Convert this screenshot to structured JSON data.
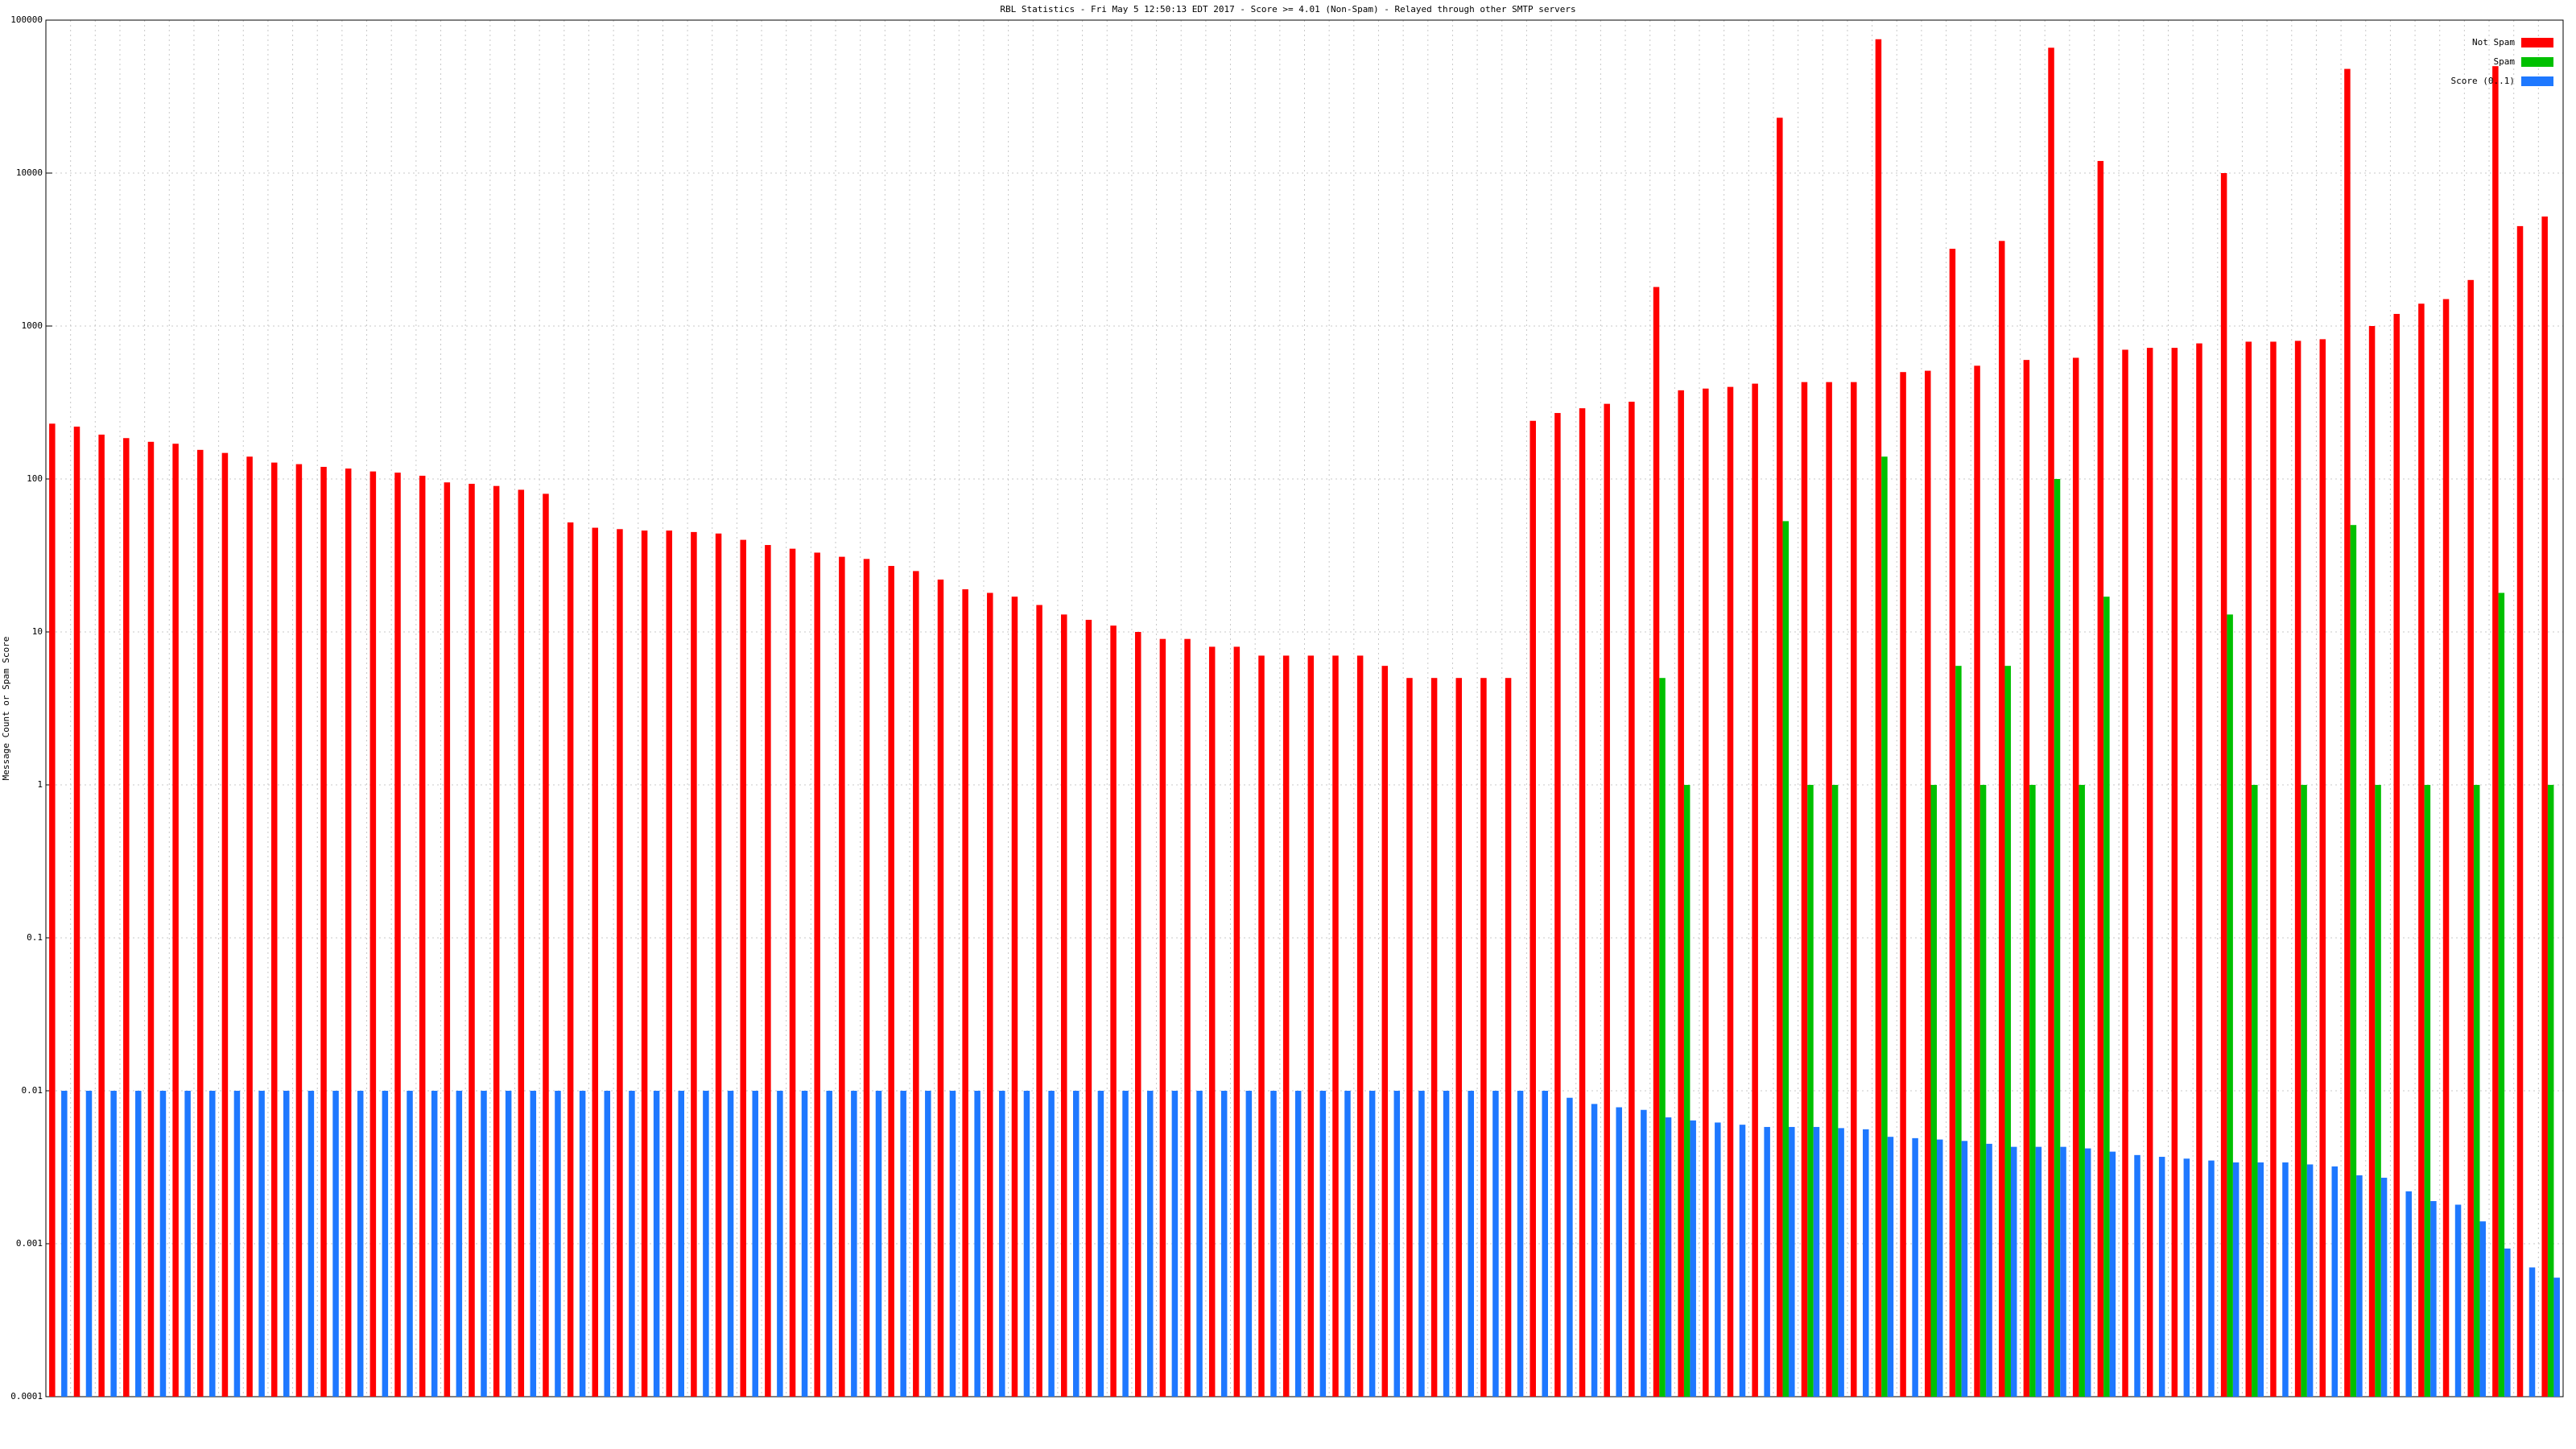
{
  "chart_data": {
    "type": "bar",
    "title": "RBL Statistics - Fri May  5 12:50:13 EDT 2017 - Score >= 4.01 (Non-Spam) - Relayed through other SMTP servers",
    "y_label": "Message Count or Spam Score",
    "log_scale": true,
    "grid": true,
    "legend": "top-right",
    "categories": [
      null,
      null,
      null,
      null,
      null,
      null,
      null,
      null,
      null,
      null,
      null,
      null,
      null,
      null,
      null,
      null,
      null,
      null,
      null,
      null,
      null,
      null,
      null,
      null,
      null,
      null,
      null,
      null,
      null,
      null,
      null,
      null,
      null,
      null,
      null,
      null,
      null,
      null,
      null,
      null,
      null,
      null,
      null,
      null,
      null,
      null,
      null,
      null,
      null,
      null,
      null,
      null,
      null,
      null,
      null,
      null,
      null,
      null,
      null,
      null,
      null,
      null,
      null,
      null,
      null,
      null,
      null,
      null,
      null,
      null,
      null,
      null,
      null,
      null,
      null,
      null,
      null,
      null,
      null,
      null,
      null,
      null,
      null,
      null,
      null,
      null,
      null,
      null,
      null,
      null,
      null,
      null,
      null,
      null,
      null,
      null,
      null,
      null,
      null,
      null,
      null,
      null
    ],
    "series": [
      {
        "name": "Not Spam",
        "color": "#ff0000",
        "values": [
          230,
          220,
          195,
          185,
          175,
          170,
          155,
          148,
          140,
          128,
          125,
          120,
          117,
          112,
          110,
          105,
          95,
          93,
          90,
          85,
          80,
          52,
          48,
          47,
          46,
          46,
          45,
          44,
          40,
          37,
          35,
          33,
          31,
          30,
          27,
          25,
          22,
          19,
          18,
          17,
          15,
          13,
          12,
          11,
          10,
          9,
          9,
          8,
          8,
          7,
          7,
          7,
          7,
          7,
          6,
          5,
          5,
          5,
          5,
          5,
          240,
          270,
          290,
          310,
          320,
          1800,
          380,
          390,
          400,
          420,
          23000,
          430,
          430,
          430,
          75000,
          500,
          510,
          3200,
          550,
          3600,
          600,
          66000,
          620,
          12000,
          700,
          720,
          720,
          770,
          10000,
          790,
          790,
          800,
          820,
          48000,
          1000,
          1200,
          1400,
          1500,
          2000,
          50000,
          4500,
          5200
        ]
      },
      {
        "name": "Spam",
        "color": "#00c000",
        "values": [
          null,
          null,
          null,
          null,
          null,
          null,
          null,
          null,
          null,
          null,
          null,
          null,
          null,
          null,
          null,
          null,
          null,
          null,
          null,
          null,
          null,
          null,
          null,
          null,
          null,
          null,
          null,
          null,
          null,
          null,
          null,
          null,
          null,
          null,
          null,
          null,
          null,
          null,
          null,
          null,
          null,
          null,
          null,
          null,
          null,
          null,
          null,
          null,
          null,
          null,
          null,
          null,
          null,
          null,
          null,
          null,
          null,
          null,
          null,
          null,
          null,
          null,
          null,
          null,
          null,
          5,
          1,
          null,
          null,
          null,
          53,
          1,
          1,
          null,
          140,
          null,
          1,
          6,
          1,
          6,
          1,
          100,
          1,
          17,
          null,
          null,
          null,
          null,
          13,
          1,
          null,
          1,
          null,
          50,
          1,
          null,
          1,
          null,
          1,
          18,
          null,
          1
        ]
      },
      {
        "name": "Score (0..1)",
        "color": "#1e78ff",
        "values": [
          0.01,
          0.01,
          0.01,
          0.01,
          0.01,
          0.01,
          0.01,
          0.01,
          0.01,
          0.01,
          0.01,
          0.01,
          0.01,
          0.01,
          0.01,
          0.01,
          0.01,
          0.01,
          0.01,
          0.01,
          0.01,
          0.01,
          0.01,
          0.01,
          0.01,
          0.01,
          0.01,
          0.01,
          0.01,
          0.01,
          0.01,
          0.01,
          0.01,
          0.01,
          0.01,
          0.01,
          0.01,
          0.01,
          0.01,
          0.01,
          0.01,
          0.01,
          0.01,
          0.01,
          0.01,
          0.01,
          0.01,
          0.01,
          0.01,
          0.01,
          0.01,
          0.01,
          0.01,
          0.01,
          0.01,
          0.01,
          0.01,
          0.01,
          0.01,
          0.01,
          0.01,
          0.009,
          0.0082,
          0.0078,
          0.0075,
          0.0067,
          0.0064,
          0.0062,
          0.006,
          0.0058,
          0.0058,
          0.0058,
          0.0057,
          0.0056,
          0.005,
          0.0049,
          0.0048,
          0.0047,
          0.0045,
          0.0043,
          0.0043,
          0.0043,
          0.0042,
          0.004,
          0.0038,
          0.0037,
          0.0036,
          0.0035,
          0.0034,
          0.0034,
          0.0034,
          0.0033,
          0.0032,
          0.0028,
          0.0027,
          0.0022,
          0.0019,
          0.0018,
          0.0014,
          0.00093,
          0.0007,
          0.0006
        ]
      }
    ],
    "ylim": [
      0.0001,
      100000
    ],
    "yticks": [
      0.0001,
      0.001,
      0.01,
      0.1,
      1,
      10,
      100,
      1000,
      10000,
      100000
    ]
  }
}
